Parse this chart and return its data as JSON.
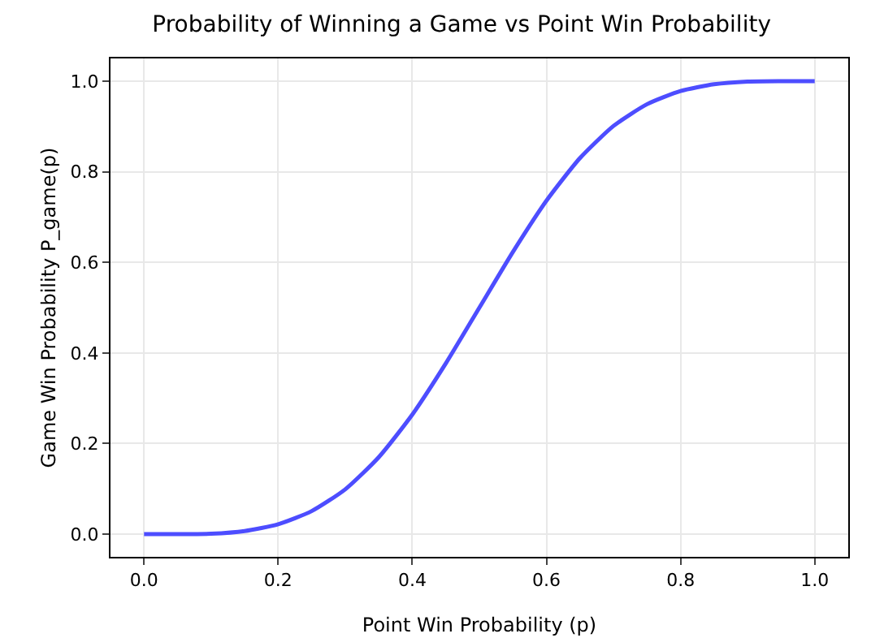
{
  "chart_data": {
    "type": "line",
    "title": "Probability of Winning a Game vs Point Win Probability",
    "xlabel": "Point Win Probability (p)",
    "ylabel": "Game Win Probability P_game(p)",
    "x": [
      0,
      0.05,
      0.1,
      0.15,
      0.2,
      0.25,
      0.3,
      0.35,
      0.4,
      0.45,
      0.5,
      0.55,
      0.6,
      0.65,
      0.7,
      0.75,
      0.8,
      0.85,
      0.9,
      0.95,
      1
    ],
    "series": [
      {
        "color": "#4d4dff",
        "values": [
          0,
          0,
          0.001,
          0.007,
          0.022,
          0.051,
          0.099,
          0.17,
          0.264,
          0.377,
          0.5,
          0.623,
          0.736,
          0.83,
          0.901,
          0.949,
          0.978,
          0.993,
          0.999,
          1,
          1
        ]
      }
    ],
    "xlim": [
      -0.05,
      1.05
    ],
    "xticks": [
      {
        "value": 0,
        "label": "0.0"
      },
      {
        "value": 0.2,
        "label": "0.2"
      },
      {
        "value": 0.4,
        "label": "0.4"
      },
      {
        "value": 0.6,
        "label": "0.6"
      },
      {
        "value": 0.8,
        "label": "0.8"
      },
      {
        "value": 1,
        "label": "1.0"
      }
    ],
    "ylim": [
      -0.05,
      1.05
    ],
    "yticks": [
      {
        "value": 0,
        "label": "0.0"
      },
      {
        "value": 0.2,
        "label": "0.2"
      },
      {
        "value": 0.4,
        "label": "0.4"
      },
      {
        "value": 0.6,
        "label": "0.6"
      },
      {
        "value": 0.8,
        "label": "0.8"
      },
      {
        "value": 1,
        "label": "1.0"
      }
    ],
    "grid": true,
    "line_style": "solid",
    "marker": "none"
  }
}
